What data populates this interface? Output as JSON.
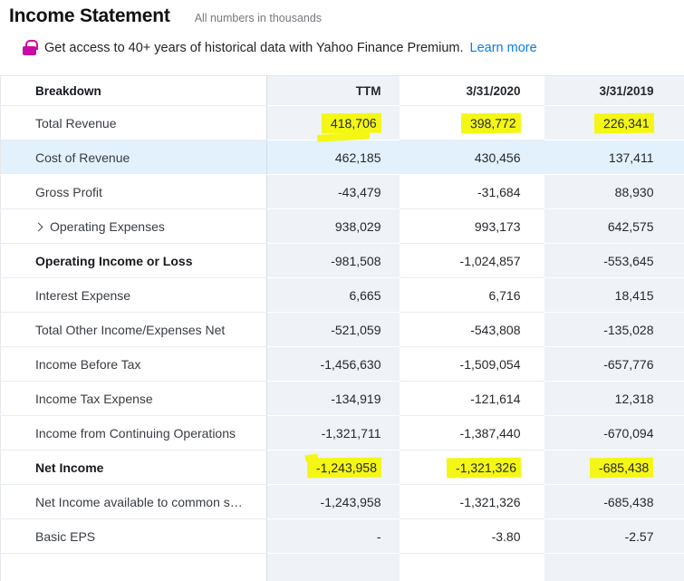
{
  "page": {
    "title": "Income Statement",
    "subtitle": "All numbers in thousands"
  },
  "banner": {
    "text": "Get access to 40+ years of historical data with Yahoo Finance Premium.",
    "link": "Learn more"
  },
  "colors": {
    "highlight": "#f4f715",
    "row_hover": "#e3f1fd",
    "column_shade": "#eff2f6",
    "link_blue": "#0b7ceb",
    "lock_magenta": "#ca0ca6"
  },
  "table": {
    "columns": [
      "Breakdown",
      "TTM",
      "3/31/2020",
      "3/31/2019"
    ],
    "rows": [
      {
        "label": "Total Revenue",
        "values": [
          "418,706",
          "398,772",
          "226,341"
        ],
        "highlights": [
          true,
          true,
          true
        ],
        "hl_variant": "swipe"
      },
      {
        "label": "Cost of Revenue",
        "values": [
          "462,185",
          "430,456",
          "137,411"
        ],
        "state": "hover"
      },
      {
        "label": "Gross Profit",
        "values": [
          "-43,479",
          "-31,684",
          "88,930"
        ]
      },
      {
        "label": "Operating Expenses",
        "values": [
          "938,029",
          "993,173",
          "642,575"
        ],
        "expandable": true
      },
      {
        "label": "Operating Income or Loss",
        "values": [
          "-981,508",
          "-1,024,857",
          "-553,645"
        ],
        "bold": true
      },
      {
        "label": "Interest Expense",
        "values": [
          "6,665",
          "6,716",
          "18,415"
        ]
      },
      {
        "label": "Total Other Income/Expenses Net",
        "values": [
          "-521,059",
          "-543,808",
          "-135,028"
        ]
      },
      {
        "label": "Income Before Tax",
        "values": [
          "-1,456,630",
          "-1,509,054",
          "-657,776"
        ]
      },
      {
        "label": "Income Tax Expense",
        "values": [
          "-134,919",
          "-121,614",
          "12,318"
        ]
      },
      {
        "label": "Income from Continuing Operations",
        "values": [
          "-1,321,711",
          "-1,387,440",
          "-670,094"
        ]
      },
      {
        "label": "Net Income",
        "values": [
          "-1,243,958",
          "-1,321,326",
          "-685,438"
        ],
        "bold": true,
        "highlights": [
          true,
          true,
          true
        ],
        "hl_variant": "bump"
      },
      {
        "label": "Net Income available to common s…",
        "values": [
          "-1,243,958",
          "-1,321,326",
          "-685,438"
        ]
      },
      {
        "label": "Basic EPS",
        "values": [
          "-",
          "-3.80",
          "-2.57"
        ]
      },
      {
        "label": "",
        "values": [
          "",
          "",
          ""
        ]
      }
    ]
  }
}
